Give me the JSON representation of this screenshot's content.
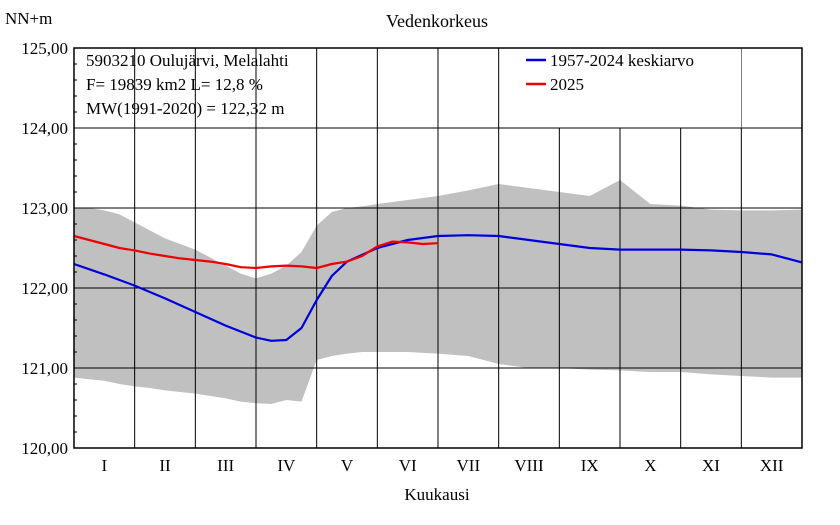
{
  "chart_data": {
    "type": "line",
    "title": "Vedenkorkeus",
    "ylabel": "NN+m",
    "xlabel": "Kuukausi",
    "ylim": [
      120.0,
      125.0
    ],
    "yticks": [
      "120,00",
      "121,00",
      "122,00",
      "123,00",
      "124,00",
      "125,00"
    ],
    "ytick_values": [
      120.0,
      121.0,
      122.0,
      123.0,
      124.0,
      125.0
    ],
    "categories": [
      "I",
      "II",
      "III",
      "IV",
      "V",
      "VI",
      "VII",
      "VIII",
      "IX",
      "X",
      "XI",
      "XII"
    ],
    "grid": true,
    "legend_position": "top-right",
    "info_lines": [
      "5903210 Oulujärvi, Melalahti",
      "F=  19839 km2 L=  12,8 %",
      "MW(1991-2020) = 122,32 m"
    ],
    "band": {
      "color": "#c0c0c0",
      "x": [
        0,
        0.25,
        0.5,
        0.75,
        1,
        1.25,
        1.5,
        1.75,
        2,
        2.25,
        2.5,
        2.75,
        3,
        3.25,
        3.5,
        3.75,
        4,
        4.25,
        4.5,
        4.75,
        5,
        5.5,
        6,
        6.5,
        7,
        7.5,
        8,
        8.5,
        9,
        9.5,
        10,
        10.5,
        11,
        11.5,
        12
      ],
      "max": [
        123.0,
        123.0,
        122.97,
        122.92,
        122.82,
        122.72,
        122.62,
        122.55,
        122.48,
        122.38,
        122.28,
        122.18,
        122.12,
        122.18,
        122.28,
        122.45,
        122.78,
        122.95,
        123.0,
        123.02,
        123.05,
        123.1,
        123.15,
        123.22,
        123.3,
        123.25,
        123.2,
        123.15,
        123.35,
        123.05,
        123.03,
        122.98,
        122.97,
        122.97,
        122.98
      ],
      "min": [
        120.88,
        120.86,
        120.84,
        120.8,
        120.77,
        120.75,
        120.72,
        120.7,
        120.68,
        120.65,
        120.62,
        120.58,
        120.56,
        120.55,
        120.6,
        120.58,
        121.1,
        121.15,
        121.18,
        121.2,
        121.2,
        121.2,
        121.18,
        121.15,
        121.05,
        121.0,
        121.0,
        120.98,
        120.97,
        120.95,
        120.95,
        120.92,
        120.9,
        120.88,
        120.88
      ]
    },
    "series": [
      {
        "name": "1957-2024 keskiarvo",
        "color": "#0000dd",
        "x": [
          0,
          0.5,
          1,
          1.5,
          2,
          2.5,
          3,
          3.25,
          3.5,
          3.75,
          4,
          4.25,
          4.5,
          5,
          5.5,
          6,
          6.5,
          7,
          7.5,
          8,
          8.5,
          9,
          9.5,
          10,
          10.5,
          11,
          11.5,
          12
        ],
        "y": [
          122.3,
          122.17,
          122.03,
          121.87,
          121.7,
          121.53,
          121.38,
          121.34,
          121.35,
          121.5,
          121.85,
          122.15,
          122.33,
          122.5,
          122.6,
          122.65,
          122.66,
          122.65,
          122.6,
          122.55,
          122.5,
          122.48,
          122.48,
          122.48,
          122.47,
          122.45,
          122.42,
          122.32
        ]
      },
      {
        "name": "2025",
        "color": "#ee0000",
        "x": [
          0,
          0.25,
          0.5,
          0.75,
          1,
          1.25,
          1.5,
          1.75,
          2,
          2.25,
          2.5,
          2.75,
          3,
          3.25,
          3.5,
          3.75,
          4,
          4.25,
          4.5,
          4.75,
          5,
          5.25,
          5.5,
          5.75,
          6
        ],
        "y": [
          122.65,
          122.6,
          122.55,
          122.5,
          122.47,
          122.43,
          122.4,
          122.37,
          122.35,
          122.33,
          122.3,
          122.26,
          122.25,
          122.27,
          122.28,
          122.27,
          122.25,
          122.3,
          122.33,
          122.4,
          122.52,
          122.58,
          122.57,
          122.55,
          122.56
        ]
      }
    ]
  }
}
